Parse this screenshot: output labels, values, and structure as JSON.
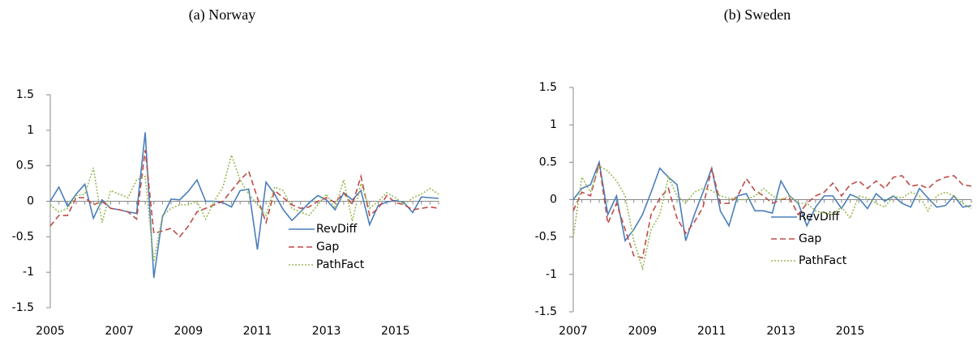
{
  "chart_data": [
    {
      "type": "line",
      "title": "(a) Norway",
      "categories": [
        "2005",
        null,
        null,
        null,
        null,
        null,
        null,
        null,
        "2007",
        null,
        null,
        null,
        null,
        null,
        null,
        null,
        "2009",
        null,
        null,
        null,
        null,
        null,
        null,
        null,
        "2011",
        null,
        null,
        null,
        null,
        null,
        null,
        null,
        "2013",
        null,
        null,
        null,
        null,
        null,
        null,
        null,
        "2015",
        null,
        null,
        null,
        null,
        null
      ],
      "series": [
        {
          "name": "RevDiff",
          "color": "#4a7ebb",
          "dash": "solid",
          "values": [
            0,
            0.2,
            -0.07,
            0.1,
            0.24,
            -0.24,
            0.02,
            -0.1,
            -0.12,
            -0.15,
            -0.17,
            0.97,
            -1.08,
            -0.22,
            0.03,
            0.02,
            0.14,
            0.3,
            0,
            0,
            -0.02,
            -0.08,
            0.15,
            0.17,
            -0.68,
            0.27,
            0.1,
            -0.12,
            -0.27,
            -0.15,
            -0.02,
            0.08,
            0.02,
            -0.12,
            0.12,
            0.02,
            0.15,
            -0.33,
            -0.06,
            -0.01,
            0.01,
            -0.02,
            -0.16,
            0.06,
            0.05,
            0.04
          ]
        },
        {
          "name": "Gap",
          "color": "#be4b48",
          "dash": "dashed",
          "values": [
            -0.35,
            -0.2,
            -0.2,
            0.05,
            0.05,
            -0.05,
            0,
            -0.1,
            -0.12,
            -0.15,
            -0.25,
            0.72,
            -0.45,
            -0.42,
            -0.38,
            -0.5,
            -0.35,
            -0.15,
            -0.1,
            -0.05,
            0,
            0.15,
            0.3,
            0.42,
            0.05,
            -0.3,
            0.15,
            0.05,
            -0.05,
            -0.1,
            -0.08,
            0,
            0.05,
            -0.02,
            0.12,
            -0.05,
            0.35,
            -0.2,
            -0.1,
            0.08,
            -0.02,
            -0.05,
            -0.12,
            -0.1,
            -0.08,
            -0.1
          ]
        },
        {
          "name": "PathFact",
          "color": "#98b954",
          "dash": "dotted",
          "values": [
            -0.05,
            -0.15,
            -0.1,
            0.08,
            0.1,
            0.47,
            -0.3,
            0.15,
            0.1,
            0.05,
            0.3,
            0.35,
            -0.85,
            -0.2,
            -0.1,
            -0.05,
            -0.05,
            0,
            -0.25,
            0,
            0.2,
            0.65,
            0.3,
            0.1,
            -0.05,
            -0.2,
            0.2,
            0.15,
            -0.1,
            -0.15,
            -0.2,
            -0.05,
            0.1,
            -0.1,
            0.3,
            -0.28,
            0.25,
            -0.1,
            0,
            0.12,
            0.05,
            -0.05,
            0.05,
            0.1,
            0.18,
            0.1
          ]
        }
      ],
      "ylim": [
        -1.5,
        1.5
      ],
      "yticks": [
        -1.5,
        -1,
        -0.5,
        0,
        0.5,
        1,
        1.5
      ],
      "grid": false
    },
    {
      "type": "line",
      "title": "(b) Sweden",
      "categories": [
        "2007",
        null,
        null,
        null,
        null,
        null,
        null,
        null,
        "2009",
        null,
        null,
        null,
        null,
        null,
        null,
        null,
        "2011",
        null,
        null,
        null,
        null,
        null,
        null,
        null,
        "2013",
        null,
        null,
        null,
        null,
        null,
        null,
        null,
        "2015",
        null,
        null,
        null,
        null,
        null,
        null,
        null,
        null,
        null,
        null,
        null,
        null,
        null,
        null
      ],
      "series": [
        {
          "name": "RevDiff",
          "color": "#4a7ebb",
          "dash": "solid",
          "values": [
            0,
            0.15,
            0.2,
            0.5,
            -0.2,
            0.05,
            -0.55,
            -0.4,
            -0.2,
            0.1,
            0.42,
            0.3,
            0.2,
            -0.55,
            -0.2,
            0.1,
            0.42,
            -0.15,
            -0.35,
            0.05,
            0.08,
            -0.15,
            -0.15,
            -0.18,
            0.25,
            0.05,
            -0.05,
            -0.35,
            -0.1,
            0.05,
            0.05,
            -0.12,
            0.07,
            0.02,
            -0.12,
            0.08,
            -0.02,
            0.05,
            -0.05,
            -0.1,
            0.15,
            0.02,
            -0.1,
            -0.08,
            0.05,
            -0.1,
            -0.08
          ]
        },
        {
          "name": "Gap",
          "color": "#be4b48",
          "dash": "dashed",
          "values": [
            -0.15,
            0.1,
            0.05,
            0.48,
            -0.32,
            -0.05,
            -0.4,
            -0.75,
            -0.78,
            -0.2,
            0.02,
            0.15,
            -0.25,
            -0.45,
            -0.3,
            -0.1,
            0.42,
            -0.05,
            -0.05,
            0.05,
            0.28,
            0.12,
            0.05,
            -0.05,
            0,
            0.02,
            -0.2,
            -0.05,
            0.05,
            0.1,
            0.22,
            0.05,
            0.2,
            0.25,
            0.15,
            0.25,
            0.15,
            0.3,
            0.32,
            0.18,
            0.2,
            0.15,
            0.25,
            0.3,
            0.32,
            0.2,
            0.18
          ]
        },
        {
          "name": "PathFact",
          "color": "#98b954",
          "dash": "dotted",
          "values": [
            -0.5,
            0.3,
            0.1,
            0.45,
            0.38,
            0.25,
            0.05,
            -0.55,
            -0.92,
            -0.4,
            -0.2,
            0.3,
            0.05,
            -0.05,
            0.1,
            0.15,
            0.12,
            0.05,
            0.02,
            0,
            0,
            0.05,
            0.15,
            0.05,
            0,
            0.05,
            -0.05,
            -0.05,
            -0.15,
            -0.18,
            -0.2,
            -0.1,
            -0.25,
            0.05,
            0.02,
            -0.05,
            -0.1,
            0.05,
            0.02,
            0.1,
            0.05,
            -0.15,
            0.05,
            0.1,
            0.05,
            -0.05,
            -0.12
          ]
        }
      ],
      "ylim": [
        -1.5,
        1.5
      ],
      "yticks": [
        -1.5,
        -1,
        -0.5,
        0,
        0.5,
        1,
        1.5
      ],
      "grid": false
    }
  ]
}
